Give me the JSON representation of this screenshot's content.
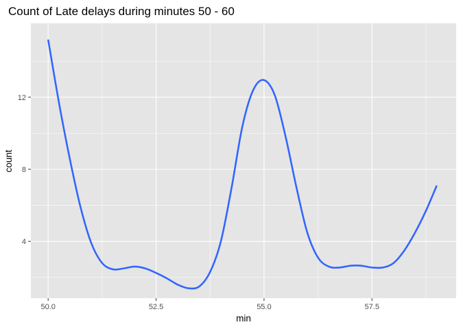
{
  "chart_data": {
    "type": "line",
    "title": "Count of Late delays during minutes 50 - 60",
    "xlabel": "min",
    "ylabel": "count",
    "xlim": [
      49.6,
      59.45
    ],
    "ylim": [
      0.85,
      16.1
    ],
    "x_ticks": [
      50.0,
      52.5,
      55.0,
      57.5
    ],
    "x_tick_labels": [
      "50.0",
      "52.5",
      "55.0",
      "57.5"
    ],
    "y_ticks": [
      4,
      8,
      12
    ],
    "y_tick_labels": [
      "4",
      "8",
      "12"
    ],
    "grid": true,
    "panel_color": "#e5e5e5",
    "grid_color": "#ffffff",
    "series": [
      {
        "color": "#3366ff",
        "x": [
          50.0,
          50.25,
          50.5,
          50.75,
          51.0,
          51.25,
          51.5,
          51.75,
          52.0,
          52.25,
          52.5,
          52.75,
          53.0,
          53.25,
          53.5,
          53.75,
          54.0,
          54.25,
          54.5,
          54.75,
          55.0,
          55.25,
          55.5,
          55.75,
          56.0,
          56.25,
          56.5,
          56.75,
          57.0,
          57.25,
          57.5,
          57.75,
          58.0,
          58.25,
          58.5,
          58.75,
          59.0
        ],
        "y": [
          15.2,
          11.7,
          8.6,
          5.9,
          3.9,
          2.8,
          2.45,
          2.5,
          2.6,
          2.5,
          2.25,
          1.95,
          1.6,
          1.4,
          1.5,
          2.3,
          4.0,
          7.0,
          10.4,
          12.4,
          12.95,
          12.1,
          9.8,
          7.0,
          4.5,
          3.1,
          2.6,
          2.55,
          2.65,
          2.65,
          2.55,
          2.55,
          2.8,
          3.5,
          4.5,
          5.7,
          7.1
        ]
      }
    ]
  }
}
